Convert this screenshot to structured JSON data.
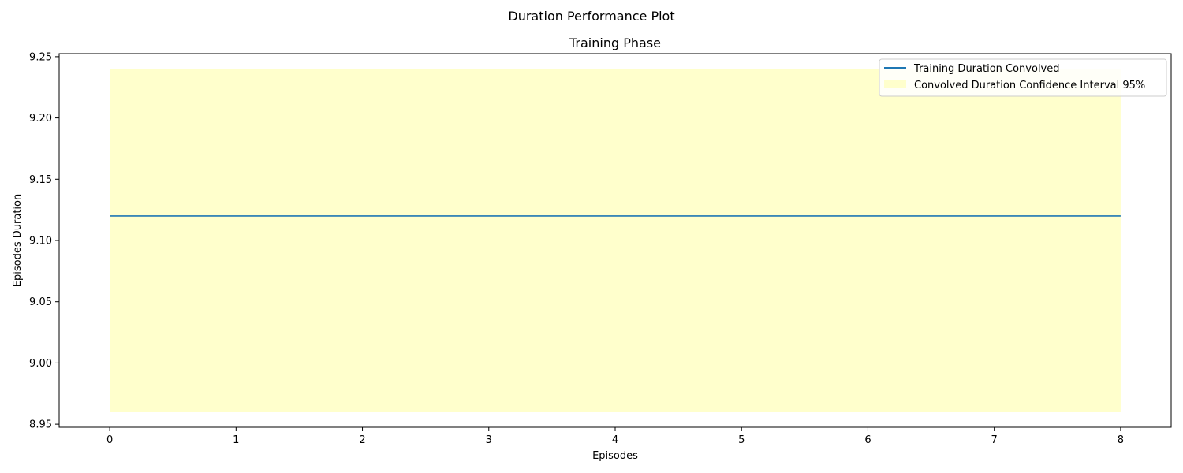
{
  "chart_data": {
    "type": "line",
    "suptitle": "Duration Performance Plot",
    "title": "Training Phase",
    "xlabel": "Episodes",
    "ylabel": "Episodes Duration",
    "xlim": [
      -0.4,
      8.4
    ],
    "ylim": [
      8.9475,
      9.2525
    ],
    "xticks": [
      0,
      1,
      2,
      3,
      4,
      5,
      6,
      7,
      8
    ],
    "yticks": [
      8.95,
      9.0,
      9.05,
      9.1,
      9.15,
      9.2,
      9.25
    ],
    "ytick_labels": [
      "8.95",
      "9.00",
      "9.05",
      "9.10",
      "9.15",
      "9.20",
      "9.25"
    ],
    "series": [
      {
        "name": "Training Duration Convolved",
        "x": [
          0,
          1,
          2,
          3,
          4,
          5,
          6,
          7,
          8
        ],
        "values": [
          9.12,
          9.12,
          9.12,
          9.12,
          9.12,
          9.12,
          9.12,
          9.12,
          9.12
        ],
        "color": "#1f77b4"
      }
    ],
    "band": {
      "name": "Convolved Duration Confidence Interval 95%",
      "x": [
        0,
        8
      ],
      "lower": [
        8.96,
        8.96
      ],
      "upper": [
        9.24,
        9.24
      ],
      "color": "#ffffcc"
    },
    "legend_position": "top-right",
    "grid": false
  }
}
